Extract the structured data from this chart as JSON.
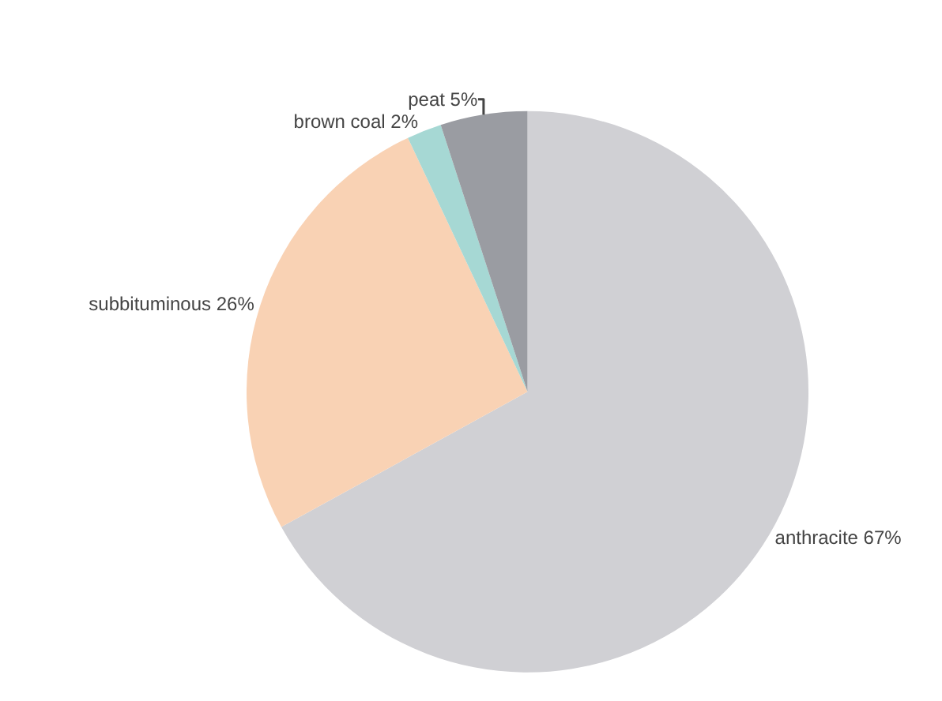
{
  "chart_data": {
    "type": "pie",
    "categories": [
      "anthracite",
      "subbituminous",
      "brown coal",
      "peat"
    ],
    "values": [
      67,
      26,
      2,
      5
    ],
    "value_labels": [
      "67%",
      "26%",
      "2%",
      "5%"
    ],
    "colors": [
      "#d0d0d4",
      "#f9d2b4",
      "#a6d8d4",
      "#9a9ca2"
    ],
    "legend": false
  }
}
